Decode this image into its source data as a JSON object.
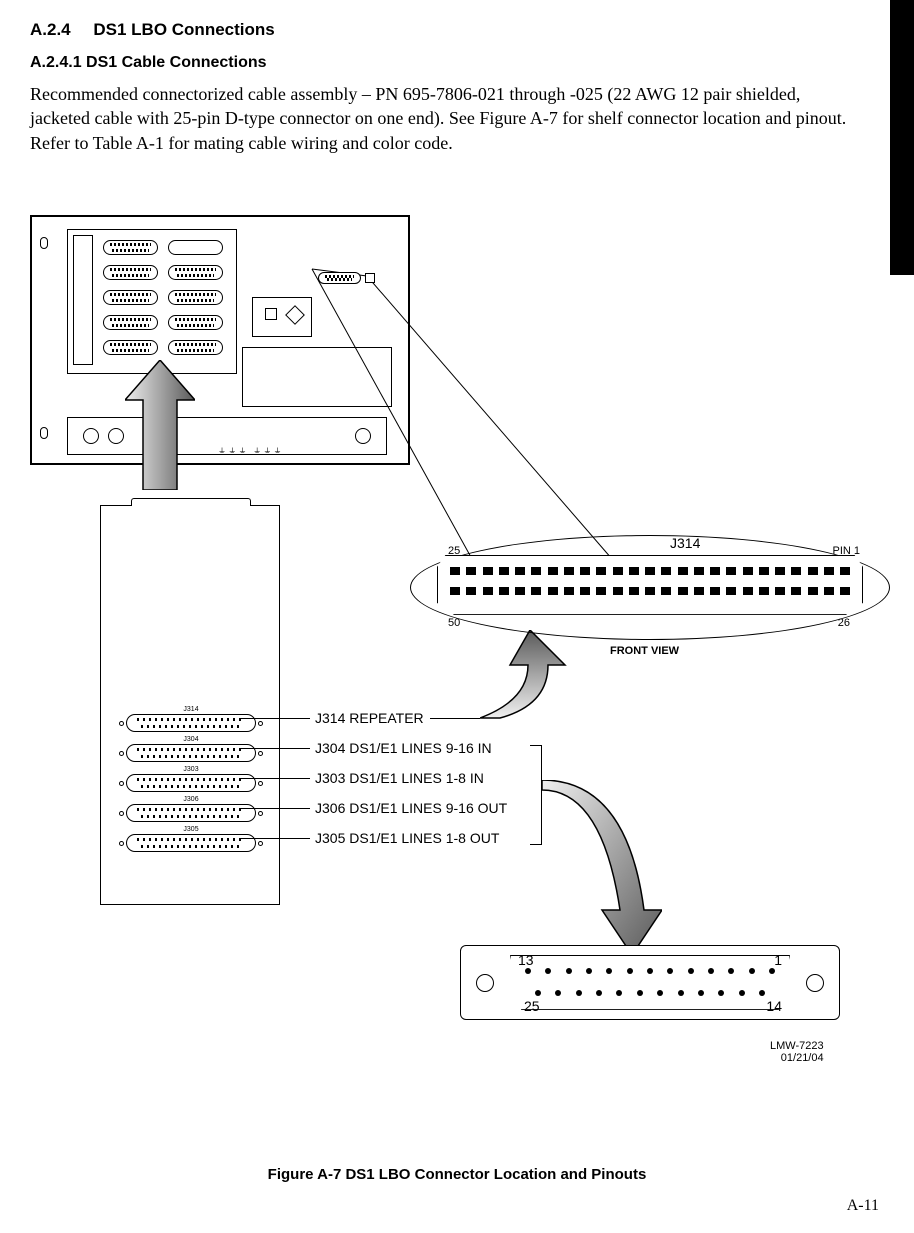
{
  "section": {
    "number": "A.2.4",
    "title": "DS1 LBO Connections"
  },
  "subsection": {
    "number": "A.2.4.1",
    "title": "DS1 Cable Connections"
  },
  "body_paragraph": "Recommended connectorized cable assembly – PN 695-7806-021 through -025 (22 AWG 12 pair shielded, jacketed cable with 25-pin D-type connector on one end). See Figure A-7 for shelf connector location and pinout. Refer to Table A-1 for mating cable wiring and color code.",
  "big_connector": {
    "name": "J314",
    "pin_top_left": "25",
    "pin_top_right": "PIN 1",
    "pin_bottom_left": "50",
    "pin_bottom_right": "26",
    "view_label": "FRONT VIEW",
    "top_pins": 25,
    "bottom_pins": 25
  },
  "module_connectors": [
    {
      "id": "J314",
      "desc": "J314 REPEATER"
    },
    {
      "id": "J304",
      "desc": "J304 DS1/E1 LINES 9-16 IN"
    },
    {
      "id": "J303",
      "desc": "J303 DS1/E1 LINES 1-8 IN"
    },
    {
      "id": "J306",
      "desc": "J306 DS1/E1 LINES 9-16 OUT"
    },
    {
      "id": "J305",
      "desc": "J305 DS1/E1 LINES 1-8 OUT"
    }
  ],
  "db25": {
    "top_left": "13",
    "top_right": "1",
    "bottom_left": "25",
    "bottom_right": "14",
    "top_pins": 13,
    "bottom_pins": 12
  },
  "doc_id": {
    "code": "LMW-7223",
    "date": "01/21/04"
  },
  "figure_caption": "Figure A-7  DS1 LBO Connector Location and Pinouts",
  "page_number": "A-11",
  "colors": {
    "bg": "#ffffff",
    "text": "#000000",
    "tab": "#000000",
    "arrow_grad_light": "#f0f0f0",
    "arrow_grad_dark": "#595959"
  }
}
